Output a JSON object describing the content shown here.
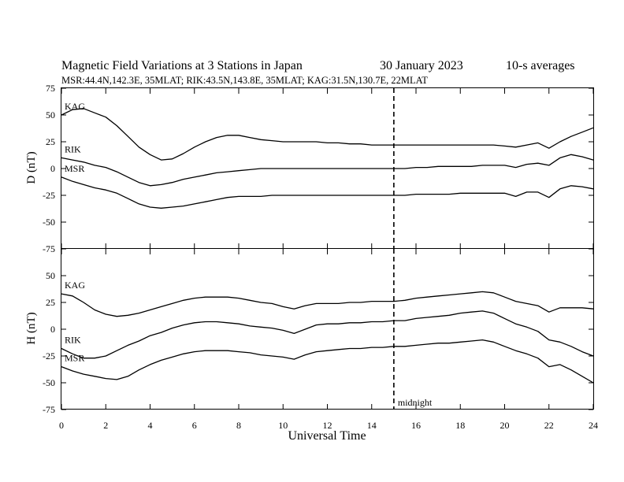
{
  "header": {
    "title": "Magnetic Field Variations at 3 Stations in Japan",
    "date": "30 January  2023",
    "averaging": "10-s averages",
    "stations": "MSR:44.4N,142.3E, 35MLAT;  RIK:43.5N,143.8E, 35MLAT;  KAG:31.5N,130.7E, 22MLAT"
  },
  "colors": {
    "line": "#000000",
    "background": "#ffffff"
  },
  "chart_data": [
    {
      "type": "line",
      "ylabel": "D (nT)",
      "xlim": [
        0,
        24
      ],
      "ylim": [
        -75,
        75
      ],
      "yticks": [
        -75,
        -50,
        -25,
        0,
        25,
        50,
        75
      ],
      "xticks": [
        0,
        2,
        4,
        6,
        8,
        10,
        12,
        14,
        16,
        18,
        20,
        22,
        24
      ],
      "grid": false,
      "series": [
        {
          "name": "KAG",
          "x": [
            0,
            0.5,
            1,
            1.5,
            2,
            2.5,
            3,
            3.5,
            4,
            4.5,
            5,
            5.5,
            6,
            6.5,
            7,
            7.5,
            8,
            8.5,
            9,
            9.5,
            10,
            10.5,
            11,
            11.5,
            12,
            12.5,
            13,
            13.5,
            14,
            14.5,
            15,
            15.5,
            16,
            16.5,
            17,
            17.5,
            18,
            18.5,
            19,
            19.5,
            20,
            20.5,
            21,
            21.5,
            22,
            22.5,
            23,
            23.5,
            24
          ],
          "values": [
            50,
            55,
            56,
            52,
            48,
            40,
            30,
            20,
            13,
            8,
            9,
            14,
            20,
            25,
            29,
            31,
            31,
            29,
            27,
            26,
            25,
            25,
            25,
            25,
            24,
            24,
            23,
            23,
            22,
            22,
            22,
            22,
            22,
            22,
            22,
            22,
            22,
            22,
            22,
            22,
            21,
            20,
            22,
            24,
            19,
            25,
            30,
            34,
            38
          ]
        },
        {
          "name": "RIK",
          "x": [
            0,
            0.5,
            1,
            1.5,
            2,
            2.5,
            3,
            3.5,
            4,
            4.5,
            5,
            5.5,
            6,
            6.5,
            7,
            7.5,
            8,
            8.5,
            9,
            9.5,
            10,
            10.5,
            11,
            11.5,
            12,
            12.5,
            13,
            13.5,
            14,
            14.5,
            15,
            15.5,
            16,
            16.5,
            17,
            17.5,
            18,
            18.5,
            19,
            19.5,
            20,
            20.5,
            21,
            21.5,
            22,
            22.5,
            23,
            23.5,
            24
          ],
          "values": [
            10,
            8,
            6,
            3,
            1,
            -3,
            -8,
            -13,
            -16,
            -15,
            -13,
            -10,
            -8,
            -6,
            -4,
            -3,
            -2,
            -1,
            0,
            0,
            0,
            0,
            0,
            0,
            0,
            0,
            0,
            0,
            0,
            0,
            0,
            0,
            1,
            1,
            2,
            2,
            2,
            2,
            3,
            3,
            3,
            1,
            4,
            5,
            3,
            10,
            13,
            11,
            8
          ]
        },
        {
          "name": "MSR",
          "x": [
            0,
            0.5,
            1,
            1.5,
            2,
            2.5,
            3,
            3.5,
            4,
            4.5,
            5,
            5.5,
            6,
            6.5,
            7,
            7.5,
            8,
            8.5,
            9,
            9.5,
            10,
            10.5,
            11,
            11.5,
            12,
            12.5,
            13,
            13.5,
            14,
            14.5,
            15,
            15.5,
            16,
            16.5,
            17,
            17.5,
            18,
            18.5,
            19,
            19.5,
            20,
            20.5,
            21,
            21.5,
            22,
            22.5,
            23,
            23.5,
            24
          ],
          "values": [
            -8,
            -12,
            -15,
            -18,
            -20,
            -23,
            -28,
            -33,
            -36,
            -37,
            -36,
            -35,
            -33,
            -31,
            -29,
            -27,
            -26,
            -26,
            -26,
            -25,
            -25,
            -25,
            -25,
            -25,
            -25,
            -25,
            -25,
            -25,
            -25,
            -25,
            -25,
            -25,
            -24,
            -24,
            -24,
            -24,
            -23,
            -23,
            -23,
            -23,
            -23,
            -26,
            -22,
            -22,
            -27,
            -19,
            -16,
            -17,
            -19
          ]
        }
      ],
      "annotations": []
    },
    {
      "type": "line",
      "ylabel": "H (nT)",
      "xlabel": "Universal Time",
      "xlim": [
        0,
        24
      ],
      "ylim": [
        -75,
        75
      ],
      "yticks": [
        -75,
        -50,
        -25,
        0,
        25,
        50
      ],
      "xticks": [
        0,
        2,
        4,
        6,
        8,
        10,
        12,
        14,
        16,
        18,
        20,
        22,
        24
      ],
      "grid": false,
      "series": [
        {
          "name": "KAG",
          "x": [
            0,
            0.5,
            1,
            1.5,
            2,
            2.5,
            3,
            3.5,
            4,
            4.5,
            5,
            5.5,
            6,
            6.5,
            7,
            7.5,
            8,
            8.5,
            9,
            9.5,
            10,
            10.5,
            11,
            11.5,
            12,
            12.5,
            13,
            13.5,
            14,
            14.5,
            15,
            15.5,
            16,
            16.5,
            17,
            17.5,
            18,
            18.5,
            19,
            19.5,
            20,
            20.5,
            21,
            21.5,
            22,
            22.5,
            23,
            23.5,
            24
          ],
          "values": [
            33,
            31,
            25,
            18,
            14,
            12,
            13,
            15,
            18,
            21,
            24,
            27,
            29,
            30,
            30,
            30,
            29,
            27,
            25,
            24,
            21,
            19,
            22,
            24,
            24,
            24,
            25,
            25,
            26,
            26,
            26,
            27,
            29,
            30,
            31,
            32,
            33,
            34,
            35,
            34,
            30,
            26,
            24,
            22,
            16,
            20,
            20,
            20,
            19
          ]
        },
        {
          "name": "RIK",
          "x": [
            0,
            0.5,
            1,
            1.5,
            2,
            2.5,
            3,
            3.5,
            4,
            4.5,
            5,
            5.5,
            6,
            6.5,
            7,
            7.5,
            8,
            8.5,
            9,
            9.5,
            10,
            10.5,
            11,
            11.5,
            12,
            12.5,
            13,
            13.5,
            14,
            14.5,
            15,
            15.5,
            16,
            16.5,
            17,
            17.5,
            18,
            18.5,
            19,
            19.5,
            20,
            20.5,
            21,
            21.5,
            22,
            22.5,
            23,
            23.5,
            24
          ],
          "values": [
            -18,
            -23,
            -27,
            -27,
            -25,
            -20,
            -15,
            -11,
            -6,
            -3,
            1,
            4,
            6,
            7,
            7,
            6,
            5,
            3,
            2,
            1,
            -1,
            -4,
            0,
            4,
            5,
            5,
            6,
            6,
            7,
            7,
            8,
            8,
            10,
            11,
            12,
            13,
            15,
            16,
            17,
            15,
            10,
            5,
            2,
            -2,
            -10,
            -12,
            -16,
            -21,
            -25
          ]
        },
        {
          "name": "MSR",
          "x": [
            0,
            0.5,
            1,
            1.5,
            2,
            2.5,
            3,
            3.5,
            4,
            4.5,
            5,
            5.5,
            6,
            6.5,
            7,
            7.5,
            8,
            8.5,
            9,
            9.5,
            10,
            10.5,
            11,
            11.5,
            12,
            12.5,
            13,
            13.5,
            14,
            14.5,
            15,
            15.5,
            16,
            16.5,
            17,
            17.5,
            18,
            18.5,
            19,
            19.5,
            20,
            20.5,
            21,
            21.5,
            22,
            22.5,
            23,
            23.5,
            24
          ],
          "values": [
            -35,
            -39,
            -42,
            -44,
            -46,
            -47,
            -44,
            -38,
            -33,
            -29,
            -26,
            -23,
            -21,
            -20,
            -20,
            -20,
            -21,
            -22,
            -24,
            -25,
            -26,
            -28,
            -24,
            -21,
            -20,
            -19,
            -18,
            -18,
            -17,
            -17,
            -16,
            -16,
            -15,
            -14,
            -13,
            -13,
            -12,
            -11,
            -10,
            -12,
            -16,
            -20,
            -23,
            -27,
            -35,
            -33,
            -38,
            -44,
            -50
          ]
        }
      ],
      "annotations": [
        {
          "label": "midnight",
          "x": 15
        }
      ]
    }
  ]
}
